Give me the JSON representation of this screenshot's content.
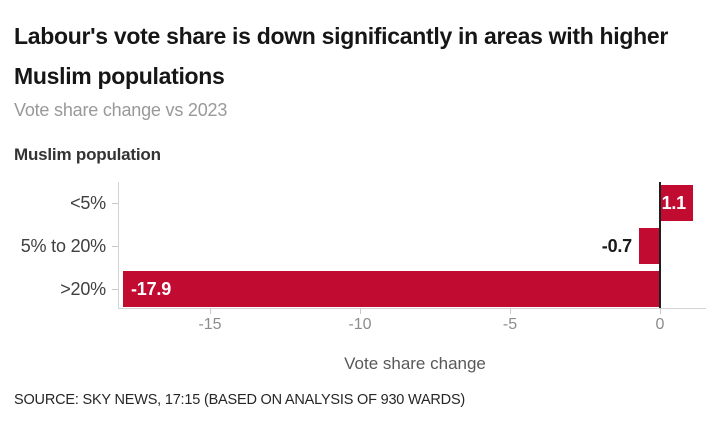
{
  "header": {
    "title_lines": [
      "Labour's vote share is down significantly in areas with higher",
      "Muslim populations"
    ],
    "subtitle": "Vote share change vs 2023"
  },
  "chart_data": {
    "type": "bar",
    "orientation": "horizontal",
    "title": "Labour's vote share is down significantly in areas with higher Muslim populations",
    "subtitle": "Vote share change vs 2023",
    "group_label": "Muslim population",
    "categories": [
      "<5%",
      "5% to 20%",
      ">20%"
    ],
    "values": [
      1.1,
      -0.7,
      -17.9
    ],
    "bar_labels": [
      "1.1",
      "-0.7",
      "-17.9"
    ],
    "xlabel": "Vote share change",
    "ylabel": "Muslim population",
    "xticks": [
      -15,
      -10,
      -5,
      0
    ],
    "xlim": [
      -18.05,
      1.15
    ],
    "grid": false,
    "legend": "none",
    "bar_color": "#c10b30",
    "zero_line_color": "#1f1f1f",
    "axis_color": "#d4d4d4",
    "value_label_inside_color": "#ffffff",
    "value_label_outside_color": "#1a1a1a"
  },
  "footer": {
    "source": "SOURCE: SKY NEWS, 17:15 (BASED ON ANALYSIS OF 930 WARDS)"
  }
}
